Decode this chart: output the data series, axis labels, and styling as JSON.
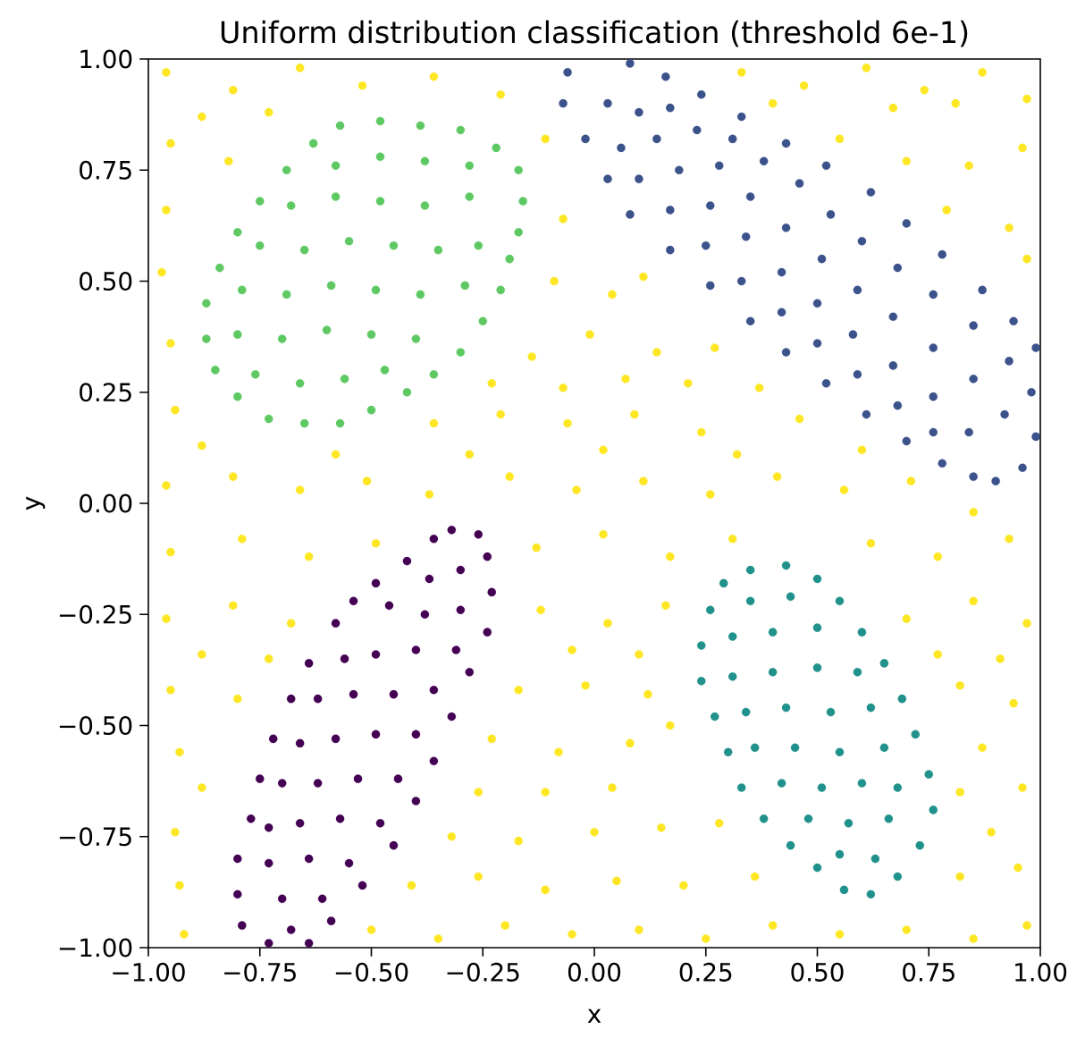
{
  "chart_data": {
    "type": "scatter",
    "title": "Uniform distribution classification (threshold 6e-1)",
    "xlabel": "x",
    "ylabel": "y",
    "xlim": [
      -1,
      1
    ],
    "ylim": [
      -1,
      1
    ],
    "xticks": [
      {
        "value": -1,
        "label": "−1.00"
      },
      {
        "value": -0.75,
        "label": "−0.75"
      },
      {
        "value": -0.5,
        "label": "−0.50"
      },
      {
        "value": -0.25,
        "label": "−0.25"
      },
      {
        "value": 0,
        "label": "0.00"
      },
      {
        "value": 0.25,
        "label": "0.25"
      },
      {
        "value": 0.5,
        "label": "0.50"
      },
      {
        "value": 0.75,
        "label": "0.75"
      },
      {
        "value": 1,
        "label": "1.00"
      }
    ],
    "yticks": [
      {
        "value": -1,
        "label": "−1.00"
      },
      {
        "value": -0.75,
        "label": "−0.75"
      },
      {
        "value": -0.5,
        "label": "−0.50"
      },
      {
        "value": -0.25,
        "label": "−0.25"
      },
      {
        "value": 0,
        "label": "0.00"
      },
      {
        "value": 0.25,
        "label": "0.25"
      },
      {
        "value": 0.5,
        "label": "0.50"
      },
      {
        "value": 0.75,
        "label": "0.75"
      },
      {
        "value": 1,
        "label": "1.00"
      }
    ],
    "marker": "circle",
    "series": [
      {
        "color": "#440154",
        "x": [
          -0.32,
          -0.26,
          -0.24,
          -0.23,
          -0.24,
          -0.28,
          -0.32,
          -0.36,
          -0.4,
          -0.45,
          -0.52,
          -0.59,
          -0.64,
          -0.36,
          -0.42,
          -0.49,
          -0.54,
          -0.58,
          -0.64,
          -0.68,
          -0.72,
          -0.75,
          -0.77,
          -0.8,
          -0.8,
          -0.79,
          -0.73,
          -0.3,
          -0.37,
          -0.3,
          -0.38,
          -0.46,
          -0.31,
          -0.4,
          -0.49,
          -0.56,
          -0.36,
          -0.45,
          -0.54,
          -0.62,
          -0.4,
          -0.49,
          -0.58,
          -0.66,
          -0.44,
          -0.53,
          -0.62,
          -0.7,
          -0.48,
          -0.57,
          -0.66,
          -0.73,
          -0.55,
          -0.64,
          -0.73,
          -0.61,
          -0.7,
          -0.68
        ],
        "values": [
          -0.06,
          -0.07,
          -0.12,
          -0.2,
          -0.29,
          -0.38,
          -0.48,
          -0.58,
          -0.67,
          -0.77,
          -0.86,
          -0.94,
          -0.99,
          -0.08,
          -0.13,
          -0.18,
          -0.22,
          -0.27,
          -0.36,
          -0.44,
          -0.53,
          -0.62,
          -0.71,
          -0.8,
          -0.88,
          -0.95,
          -0.99,
          -0.15,
          -0.17,
          -0.24,
          -0.25,
          -0.23,
          -0.33,
          -0.33,
          -0.34,
          -0.35,
          -0.42,
          -0.43,
          -0.43,
          -0.44,
          -0.52,
          -0.52,
          -0.53,
          -0.54,
          -0.62,
          -0.62,
          -0.63,
          -0.63,
          -0.72,
          -0.71,
          -0.72,
          -0.73,
          -0.81,
          -0.8,
          -0.81,
          -0.89,
          -0.89,
          -0.96
        ]
      },
      {
        "color": "#3b528b",
        "x": [
          0.08,
          0.16,
          0.24,
          0.33,
          0.43,
          0.52,
          0.62,
          0.7,
          0.78,
          0.87,
          0.94,
          0.99,
          -0.06,
          -0.07,
          -0.02,
          0.03,
          0.08,
          0.17,
          0.26,
          0.35,
          0.43,
          0.52,
          0.61,
          0.7,
          0.78,
          0.85,
          0.9,
          0.96,
          0.99,
          0.03,
          0.1,
          0.17,
          0.06,
          0.14,
          0.23,
          0.31,
          0.1,
          0.19,
          0.28,
          0.38,
          0.17,
          0.26,
          0.35,
          0.46,
          0.25,
          0.34,
          0.43,
          0.53,
          0.33,
          0.42,
          0.51,
          0.6,
          0.42,
          0.5,
          0.59,
          0.68,
          0.5,
          0.58,
          0.67,
          0.76,
          0.59,
          0.67,
          0.76,
          0.85,
          0.68,
          0.76,
          0.85,
          0.93,
          0.76,
          0.84,
          0.92,
          0.98
        ],
        "values": [
          0.99,
          0.96,
          0.92,
          0.87,
          0.81,
          0.76,
          0.7,
          0.63,
          0.56,
          0.48,
          0.41,
          0.35,
          0.97,
          0.9,
          0.82,
          0.73,
          0.65,
          0.57,
          0.49,
          0.41,
          0.34,
          0.27,
          0.2,
          0.14,
          0.09,
          0.06,
          0.05,
          0.08,
          0.15,
          0.9,
          0.88,
          0.89,
          0.8,
          0.82,
          0.84,
          0.82,
          0.73,
          0.75,
          0.76,
          0.77,
          0.66,
          0.67,
          0.69,
          0.72,
          0.58,
          0.6,
          0.62,
          0.65,
          0.5,
          0.52,
          0.55,
          0.59,
          0.43,
          0.45,
          0.48,
          0.53,
          0.36,
          0.38,
          0.42,
          0.47,
          0.29,
          0.31,
          0.35,
          0.4,
          0.22,
          0.24,
          0.28,
          0.32,
          0.16,
          0.16,
          0.2,
          0.25
        ]
      },
      {
        "color": "#21918c",
        "x": [
          0.35,
          0.43,
          0.5,
          0.55,
          0.6,
          0.65,
          0.69,
          0.72,
          0.75,
          0.76,
          0.73,
          0.68,
          0.62,
          0.56,
          0.5,
          0.44,
          0.38,
          0.33,
          0.3,
          0.27,
          0.24,
          0.24,
          0.26,
          0.29,
          0.35,
          0.44,
          0.31,
          0.4,
          0.5,
          0.31,
          0.4,
          0.5,
          0.59,
          0.34,
          0.43,
          0.53,
          0.62,
          0.36,
          0.45,
          0.55,
          0.65,
          0.42,
          0.51,
          0.6,
          0.68,
          0.48,
          0.57,
          0.66,
          0.55,
          0.63
        ],
        "values": [
          -0.15,
          -0.14,
          -0.17,
          -0.22,
          -0.29,
          -0.36,
          -0.44,
          -0.52,
          -0.61,
          -0.69,
          -0.77,
          -0.84,
          -0.88,
          -0.87,
          -0.82,
          -0.77,
          -0.71,
          -0.64,
          -0.56,
          -0.48,
          -0.4,
          -0.32,
          -0.24,
          -0.18,
          -0.22,
          -0.21,
          -0.3,
          -0.29,
          -0.28,
          -0.39,
          -0.38,
          -0.37,
          -0.38,
          -0.47,
          -0.46,
          -0.47,
          -0.46,
          -0.55,
          -0.55,
          -0.56,
          -0.55,
          -0.63,
          -0.64,
          -0.63,
          -0.64,
          -0.71,
          -0.72,
          -0.71,
          -0.79,
          -0.8
        ]
      },
      {
        "color": "#5ec962",
        "x": [
          -0.57,
          -0.48,
          -0.39,
          -0.3,
          -0.22,
          -0.17,
          -0.16,
          -0.17,
          -0.19,
          -0.21,
          -0.25,
          -0.3,
          -0.36,
          -0.42,
          -0.5,
          -0.57,
          -0.65,
          -0.73,
          -0.8,
          -0.85,
          -0.87,
          -0.87,
          -0.84,
          -0.8,
          -0.75,
          -0.69,
          -0.63,
          -0.58,
          -0.48,
          -0.38,
          -0.28,
          -0.68,
          -0.58,
          -0.48,
          -0.38,
          -0.28,
          -0.75,
          -0.65,
          -0.55,
          -0.45,
          -0.35,
          -0.26,
          -0.79,
          -0.69,
          -0.59,
          -0.49,
          -0.39,
          -0.29,
          -0.8,
          -0.7,
          -0.6,
          -0.5,
          -0.4,
          -0.76,
          -0.66,
          -0.56,
          -0.47
        ],
        "values": [
          0.85,
          0.86,
          0.85,
          0.84,
          0.8,
          0.75,
          0.68,
          0.61,
          0.55,
          0.48,
          0.41,
          0.34,
          0.29,
          0.25,
          0.21,
          0.18,
          0.18,
          0.19,
          0.24,
          0.3,
          0.37,
          0.45,
          0.53,
          0.61,
          0.68,
          0.75,
          0.81,
          0.76,
          0.78,
          0.77,
          0.76,
          0.67,
          0.69,
          0.68,
          0.67,
          0.69,
          0.58,
          0.57,
          0.59,
          0.58,
          0.57,
          0.58,
          0.48,
          0.47,
          0.49,
          0.48,
          0.47,
          0.49,
          0.38,
          0.37,
          0.39,
          0.38,
          0.37,
          0.29,
          0.27,
          0.28,
          0.3
        ]
      },
      {
        "color": "#fde725",
        "x": [
          -0.96,
          -0.81,
          -0.66,
          -0.52,
          -0.36,
          -0.21,
          0.33,
          0.47,
          0.61,
          0.74,
          0.87,
          0.97,
          -0.88,
          -0.73,
          0.4,
          0.67,
          0.81,
          -0.95,
          -0.82,
          -0.11,
          0.55,
          0.7,
          0.84,
          0.96,
          -0.96,
          -0.07,
          0.79,
          0.93,
          -0.97,
          -0.09,
          0.04,
          0.11,
          0.97,
          -0.95,
          -0.14,
          -0.01,
          0.14,
          0.27,
          -0.23,
          -0.07,
          0.07,
          0.21,
          0.37,
          -0.94,
          -0.36,
          -0.21,
          -0.06,
          0.09,
          0.24,
          0.46,
          -0.88,
          -0.58,
          -0.28,
          0.02,
          0.32,
          0.6,
          -0.96,
          -0.81,
          -0.66,
          -0.51,
          -0.37,
          -0.19,
          -0.04,
          0.11,
          0.26,
          0.41,
          0.56,
          0.71,
          0.85,
          -0.95,
          -0.79,
          -0.64,
          -0.49,
          -0.13,
          0.02,
          0.17,
          0.31,
          0.62,
          0.77,
          0.93,
          -0.96,
          -0.81,
          -0.68,
          -0.12,
          0.03,
          0.16,
          0.7,
          0.85,
          0.97,
          -0.88,
          -0.73,
          -0.05,
          0.1,
          0.77,
          0.91,
          -0.95,
          -0.8,
          -0.17,
          -0.02,
          0.12,
          0.82,
          0.94,
          -0.93,
          -0.23,
          -0.08,
          0.08,
          0.17,
          0.87,
          -0.88,
          -0.26,
          -0.11,
          0.04,
          0.82,
          0.96,
          -0.94,
          -0.32,
          -0.17,
          0.0,
          0.15,
          0.28,
          0.89,
          -0.93,
          -0.41,
          -0.26,
          -0.11,
          0.05,
          0.2,
          0.36,
          0.82,
          0.95,
          -0.92,
          -0.5,
          -0.35,
          -0.2,
          -0.05,
          0.1,
          0.25,
          0.4,
          0.55,
          0.7,
          0.85,
          0.97
        ],
        "values": [
          0.97,
          0.93,
          0.98,
          0.94,
          0.96,
          0.92,
          0.97,
          0.94,
          0.98,
          0.93,
          0.97,
          0.91,
          0.87,
          0.88,
          0.9,
          0.89,
          0.9,
          0.81,
          0.77,
          0.82,
          0.82,
          0.77,
          0.76,
          0.8,
          0.66,
          0.64,
          0.66,
          0.62,
          0.52,
          0.5,
          0.47,
          0.51,
          0.55,
          0.36,
          0.33,
          0.38,
          0.34,
          0.35,
          0.27,
          0.26,
          0.28,
          0.27,
          0.26,
          0.21,
          0.18,
          0.2,
          0.18,
          0.2,
          0.16,
          0.19,
          0.13,
          0.11,
          0.11,
          0.12,
          0.11,
          0.12,
          0.04,
          0.06,
          0.03,
          0.05,
          0.02,
          0.06,
          0.03,
          0.05,
          0.02,
          0.06,
          0.03,
          0.05,
          -0.02,
          -0.11,
          -0.08,
          -0.12,
          -0.09,
          -0.1,
          -0.07,
          -0.12,
          -0.08,
          -0.09,
          -0.12,
          -0.08,
          -0.26,
          -0.23,
          -0.27,
          -0.24,
          -0.27,
          -0.23,
          -0.26,
          -0.22,
          -0.27,
          -0.34,
          -0.35,
          -0.33,
          -0.34,
          -0.34,
          -0.35,
          -0.42,
          -0.44,
          -0.42,
          -0.41,
          -0.43,
          -0.41,
          -0.45,
          -0.56,
          -0.53,
          -0.56,
          -0.54,
          -0.5,
          -0.55,
          -0.64,
          -0.65,
          -0.65,
          -0.64,
          -0.65,
          -0.64,
          -0.74,
          -0.75,
          -0.76,
          -0.74,
          -0.73,
          -0.72,
          -0.74,
          -0.86,
          -0.86,
          -0.84,
          -0.87,
          -0.85,
          -0.86,
          -0.84,
          -0.84,
          -0.82,
          -0.97,
          -0.96,
          -0.98,
          -0.95,
          -0.97,
          -0.96,
          -0.98,
          -0.95,
          -0.97,
          -0.96,
          -0.98,
          -0.95
        ]
      }
    ]
  }
}
